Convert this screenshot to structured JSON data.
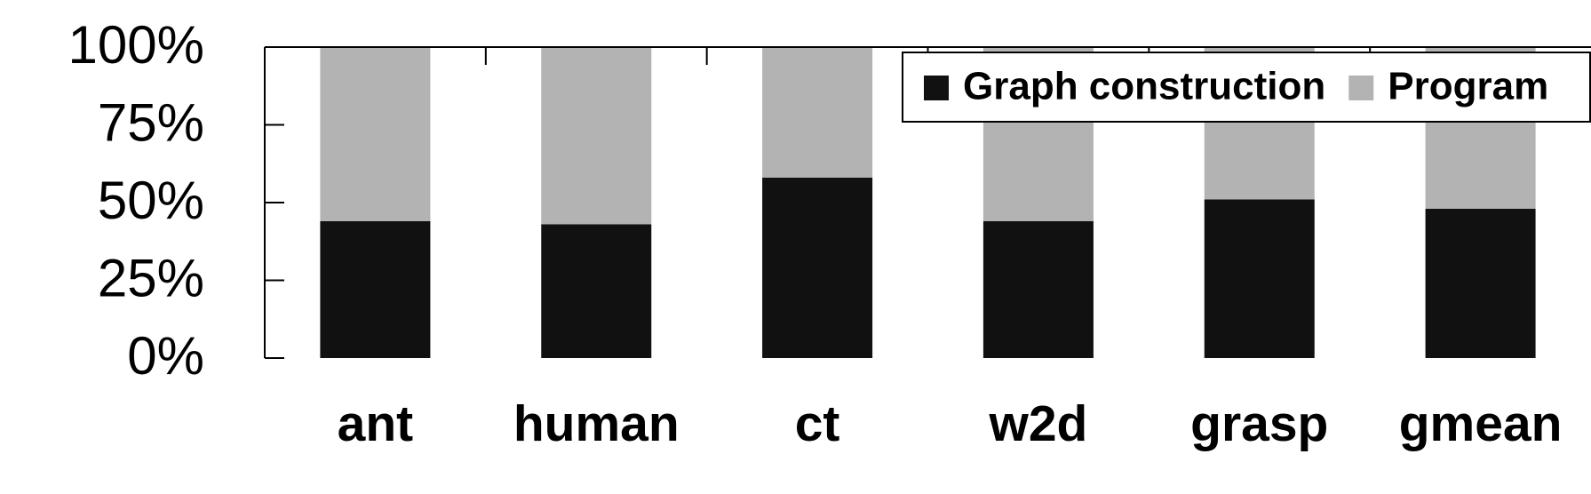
{
  "chart_data": {
    "type": "stacked_bar",
    "categories": [
      "ant",
      "human",
      "ct",
      "w2d",
      "grasp",
      "gmean"
    ],
    "series": [
      {
        "name": "Graph construction",
        "color": "#111111",
        "values": [
          44,
          43,
          58,
          44,
          51,
          48
        ]
      },
      {
        "name": "Program",
        "color": "#b3b3b3",
        "values": [
          56,
          57,
          42,
          56,
          49,
          52
        ]
      }
    ],
    "ylim": [
      0,
      100
    ],
    "yticks": [
      {
        "value": 0,
        "label": "0%"
      },
      {
        "value": 25,
        "label": "25%"
      },
      {
        "value": 50,
        "label": "50%"
      },
      {
        "value": 75,
        "label": "75%"
      },
      {
        "value": 100,
        "label": "100%"
      }
    ],
    "legend": "top-right"
  }
}
